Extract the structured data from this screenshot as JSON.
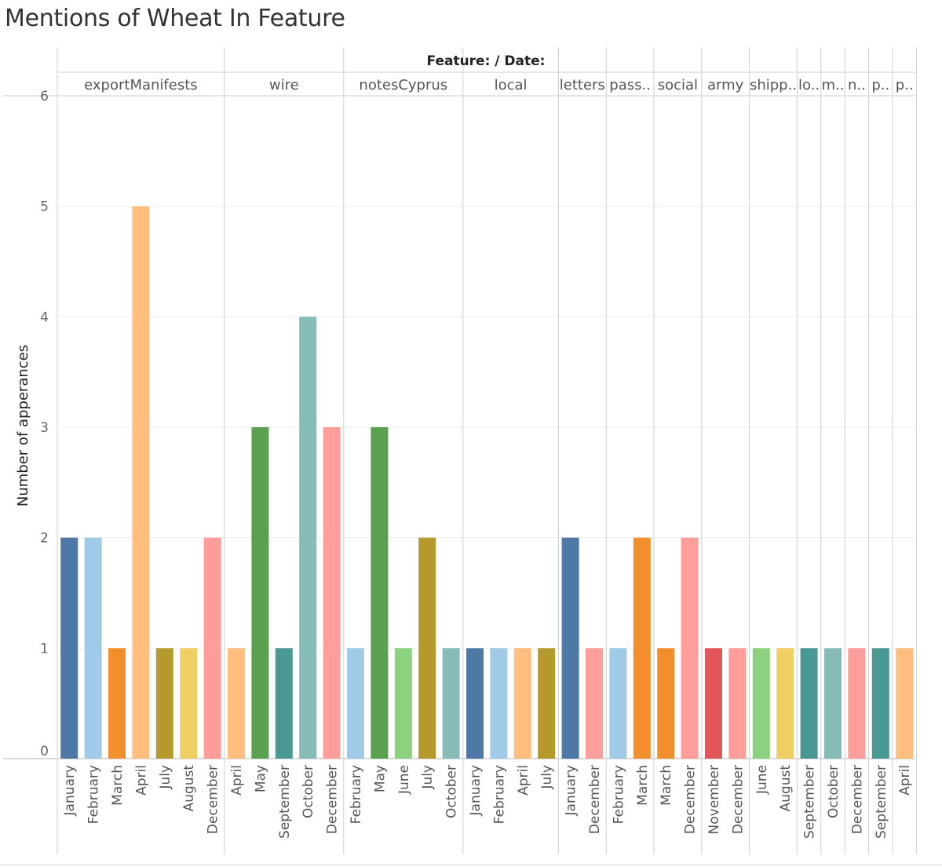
{
  "title": "Mentions of Wheat In Feature",
  "header": "Feature: / Date:",
  "chart_data": {
    "type": "bar",
    "title": "Mentions of Wheat In Feature",
    "ylabel": "Number of apperances",
    "ylim": [
      0,
      6
    ],
    "yticks": [
      0,
      1,
      2,
      3,
      4,
      5,
      6
    ],
    "grid": true,
    "groups": [
      {
        "feature": "exportManifests",
        "label": "exportManifests",
        "bars": [
          {
            "month": "January",
            "value": 2,
            "color": "#4E79A7"
          },
          {
            "month": "February",
            "value": 2,
            "color": "#A0CBE8"
          },
          {
            "month": "March",
            "value": 1,
            "color": "#F28E2B"
          },
          {
            "month": "April",
            "value": 5,
            "color": "#FFBE7D"
          },
          {
            "month": "July",
            "value": 1,
            "color": "#B6992D"
          },
          {
            "month": "August",
            "value": 1,
            "color": "#F1CE63"
          },
          {
            "month": "December",
            "value": 2,
            "color": "#FF9D9A"
          }
        ]
      },
      {
        "feature": "wire",
        "label": "wire",
        "bars": [
          {
            "month": "April",
            "value": 1,
            "color": "#FFBE7D"
          },
          {
            "month": "May",
            "value": 3,
            "color": "#59A14F"
          },
          {
            "month": "September",
            "value": 1,
            "color": "#499894"
          },
          {
            "month": "October",
            "value": 4,
            "color": "#86BCB6"
          },
          {
            "month": "December",
            "value": 3,
            "color": "#FF9D9A"
          }
        ]
      },
      {
        "feature": "notesCyprus",
        "label": "notesCyprus",
        "bars": [
          {
            "month": "February",
            "value": 1,
            "color": "#A0CBE8"
          },
          {
            "month": "May",
            "value": 3,
            "color": "#59A14F"
          },
          {
            "month": "June",
            "value": 1,
            "color": "#8CD17D"
          },
          {
            "month": "July",
            "value": 2,
            "color": "#B6992D"
          },
          {
            "month": "October",
            "value": 1,
            "color": "#86BCB6"
          }
        ]
      },
      {
        "feature": "local",
        "label": "local",
        "bars": [
          {
            "month": "January",
            "value": 1,
            "color": "#4E79A7"
          },
          {
            "month": "February",
            "value": 1,
            "color": "#A0CBE8"
          },
          {
            "month": "April",
            "value": 1,
            "color": "#FFBE7D"
          },
          {
            "month": "July",
            "value": 1,
            "color": "#B6992D"
          }
        ]
      },
      {
        "feature": "letters",
        "label": "letters",
        "bars": [
          {
            "month": "January",
            "value": 2,
            "color": "#4E79A7"
          },
          {
            "month": "December",
            "value": 1,
            "color": "#FF9D9A"
          }
        ]
      },
      {
        "feature": "pass..",
        "label": "pass..",
        "bars": [
          {
            "month": "February",
            "value": 1,
            "color": "#A0CBE8"
          },
          {
            "month": "March",
            "value": 2,
            "color": "#F28E2B"
          }
        ]
      },
      {
        "feature": "social",
        "label": "social",
        "bars": [
          {
            "month": "March",
            "value": 1,
            "color": "#F28E2B"
          },
          {
            "month": "December",
            "value": 2,
            "color": "#FF9D9A"
          }
        ]
      },
      {
        "feature": "army",
        "label": "army",
        "bars": [
          {
            "month": "November",
            "value": 1,
            "color": "#E15759"
          },
          {
            "month": "December",
            "value": 1,
            "color": "#FF9D9A"
          }
        ]
      },
      {
        "feature": "shipp..",
        "label": "shipp..",
        "bars": [
          {
            "month": "June",
            "value": 1,
            "color": "#8CD17D"
          },
          {
            "month": "August",
            "value": 1,
            "color": "#F1CE63"
          }
        ]
      },
      {
        "feature": "lo..",
        "label": "lo..",
        "bars": [
          {
            "month": "September",
            "value": 1,
            "color": "#499894"
          }
        ]
      },
      {
        "feature": "m..",
        "label": "m..",
        "bars": [
          {
            "month": "October",
            "value": 1,
            "color": "#86BCB6"
          }
        ]
      },
      {
        "feature": "n..",
        "label": "n..",
        "bars": [
          {
            "month": "December",
            "value": 1,
            "color": "#FF9D9A"
          }
        ]
      },
      {
        "feature": "p..",
        "label": "p..",
        "bars": [
          {
            "month": "September",
            "value": 1,
            "color": "#499894"
          }
        ]
      },
      {
        "feature": "p..",
        "label": "p..",
        "bars": [
          {
            "month": "April",
            "value": 1,
            "color": "#FFBE7D"
          }
        ]
      }
    ]
  }
}
